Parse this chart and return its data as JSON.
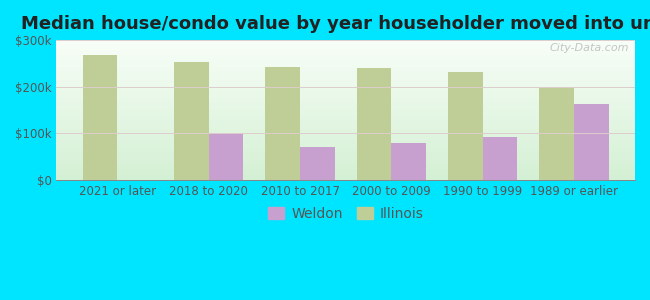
{
  "title": "Median house/condo value by year householder moved into unit",
  "categories": [
    "2021 or later",
    "2018 to 2020",
    "2010 to 2017",
    "2000 to 2009",
    "1990 to 1999",
    "1989 or earlier"
  ],
  "weldon_values": [
    null,
    100000,
    70000,
    80000,
    93000,
    163000
  ],
  "illinois_values": [
    268000,
    253000,
    242000,
    240000,
    232000,
    200000
  ],
  "weldon_color": "#c8a0d0",
  "illinois_color": "#bece96",
  "background_outer": "#00e5ff",
  "ylim": [
    0,
    300000
  ],
  "yticks": [
    0,
    100000,
    200000,
    300000
  ],
  "ytick_labels": [
    "$0",
    "$100k",
    "$200k",
    "$300k"
  ],
  "bar_width": 0.38,
  "title_fontsize": 13,
  "tick_fontsize": 8.5,
  "legend_fontsize": 10,
  "watermark": "City-Data.com"
}
